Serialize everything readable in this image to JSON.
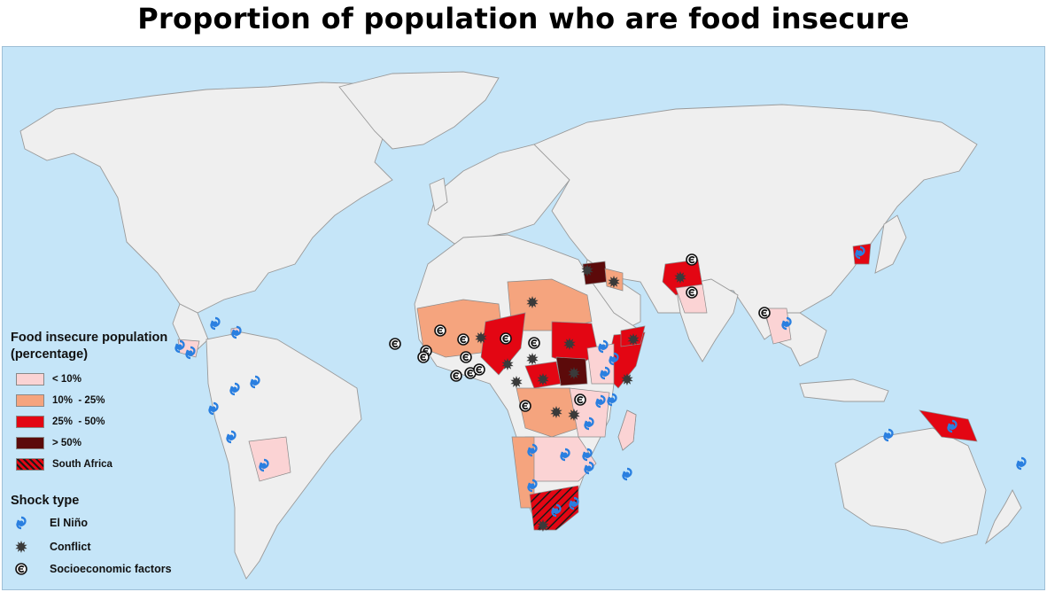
{
  "title": "Proportion of population who are food insecure",
  "legend": {
    "heading_line1": "Food insecure population",
    "heading_line2": "(percentage)",
    "categories": [
      {
        "label": "< 10%",
        "color": "#fbd3d4"
      },
      {
        "label": "10%  - 25%",
        "color": "#f5a47e"
      },
      {
        "label": "25%  - 50%",
        "color": "#e30613"
      },
      {
        "label": "> 50%",
        "color": "#5c0a0a"
      },
      {
        "label": "South Africa",
        "color": "#e30613",
        "pattern": "hatched"
      }
    ],
    "shock_heading": "Shock type",
    "shock_types": [
      {
        "label": "El Niño",
        "icon": "el-nino-icon",
        "color": "#2a7fe0"
      },
      {
        "label": "Conflict",
        "icon": "conflict-icon",
        "color": "#333333"
      },
      {
        "label": "Socioeconomic factors",
        "icon": "socioeconomic-icon",
        "color": "#111111"
      }
    ]
  },
  "colors": {
    "ocean": "#c5e5f8",
    "land": "#efefef",
    "border": "#9a9a9a"
  }
}
